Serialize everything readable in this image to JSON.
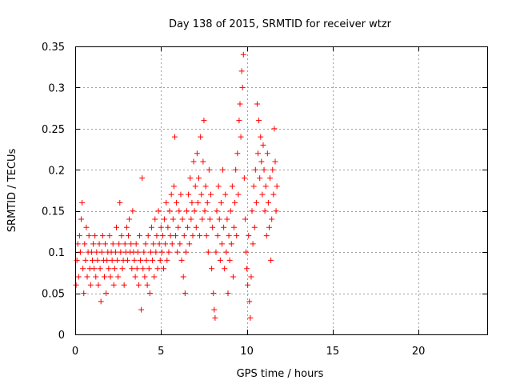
{
  "chart_data": {
    "type": "scatter",
    "title": "Day 138 of 2015, SRMTID for receiver wtzr",
    "xlabel": "GPS time / hours",
    "ylabel": "SRMTID / TECUs",
    "xlim": [
      0,
      24
    ],
    "ylim": [
      0,
      0.35
    ],
    "xticks": [
      0,
      5,
      10,
      15,
      20
    ],
    "xtick_labels": [
      "0",
      "5",
      "10",
      "15",
      "20"
    ],
    "yticks": [
      0,
      0.05,
      0.1,
      0.15,
      0.2,
      0.25,
      0.3,
      0.35
    ],
    "ytick_labels": [
      "0",
      "0.05",
      "0.1",
      "0.15",
      "0.2",
      "0.25",
      "0.3",
      "0.35"
    ],
    "grid": true,
    "marker": "plus",
    "color": "#ff0000",
    "series": [
      {
        "name": "SRMTID",
        "points": [
          [
            0.05,
            0.06
          ],
          [
            0.1,
            0.09
          ],
          [
            0.15,
            0.11
          ],
          [
            0.2,
            0.07
          ],
          [
            0.25,
            0.12
          ],
          [
            0.3,
            0.1
          ],
          [
            0.35,
            0.14
          ],
          [
            0.4,
            0.16
          ],
          [
            0.45,
            0.08
          ],
          [
            0.5,
            0.05
          ],
          [
            0.55,
            0.11
          ],
          [
            0.6,
            0.09
          ],
          [
            0.65,
            0.13
          ],
          [
            0.7,
            0.07
          ],
          [
            0.75,
            0.1
          ],
          [
            0.8,
            0.12
          ],
          [
            0.85,
            0.08
          ],
          [
            0.9,
            0.06
          ],
          [
            0.95,
            0.1
          ],
          [
            1.0,
            0.09
          ],
          [
            1.05,
            0.11
          ],
          [
            1.1,
            0.08
          ],
          [
            1.15,
            0.12
          ],
          [
            1.2,
            0.07
          ],
          [
            1.25,
            0.1
          ],
          [
            1.3,
            0.09
          ],
          [
            1.35,
            0.06
          ],
          [
            1.4,
            0.11
          ],
          [
            1.45,
            0.08
          ],
          [
            1.5,
            0.04
          ],
          [
            1.55,
            0.1
          ],
          [
            1.6,
            0.12
          ],
          [
            1.65,
            0.09
          ],
          [
            1.7,
            0.07
          ],
          [
            1.75,
            0.11
          ],
          [
            1.8,
            0.05
          ],
          [
            1.85,
            0.09
          ],
          [
            1.9,
            0.1
          ],
          [
            1.95,
            0.08
          ],
          [
            2.0,
            0.12
          ],
          [
            2.05,
            0.07
          ],
          [
            2.1,
            0.1
          ],
          [
            2.15,
            0.09
          ],
          [
            2.2,
            0.11
          ],
          [
            2.25,
            0.06
          ],
          [
            2.3,
            0.08
          ],
          [
            2.35,
            0.1
          ],
          [
            2.4,
            0.13
          ],
          [
            2.45,
            0.09
          ],
          [
            2.5,
            0.07
          ],
          [
            2.55,
            0.11
          ],
          [
            2.6,
            0.16
          ],
          [
            2.65,
            0.1
          ],
          [
            2.7,
            0.12
          ],
          [
            2.75,
            0.08
          ],
          [
            2.8,
            0.09
          ],
          [
            2.85,
            0.06
          ],
          [
            2.9,
            0.11
          ],
          [
            2.95,
            0.1
          ],
          [
            3.0,
            0.13
          ],
          [
            3.05,
            0.09
          ],
          [
            3.1,
            0.12
          ],
          [
            3.15,
            0.14
          ],
          [
            3.2,
            0.1
          ],
          [
            3.25,
            0.11
          ],
          [
            3.3,
            0.08
          ],
          [
            3.35,
            0.15
          ],
          [
            3.4,
            0.1
          ],
          [
            3.45,
            0.09
          ],
          [
            3.5,
            0.07
          ],
          [
            3.55,
            0.11
          ],
          [
            3.6,
            0.08
          ],
          [
            3.65,
            0.1
          ],
          [
            3.7,
            0.06
          ],
          [
            3.75,
            0.12
          ],
          [
            3.8,
            0.09
          ],
          [
            3.85,
            0.03
          ],
          [
            3.9,
            0.19
          ],
          [
            3.95,
            0.08
          ],
          [
            4.0,
            0.1
          ],
          [
            4.05,
            0.07
          ],
          [
            4.1,
            0.11
          ],
          [
            4.15,
            0.09
          ],
          [
            4.2,
            0.06
          ],
          [
            4.25,
            0.12
          ],
          [
            4.3,
            0.08
          ],
          [
            4.35,
            0.05
          ],
          [
            4.4,
            0.1
          ],
          [
            4.45,
            0.13
          ],
          [
            4.5,
            0.09
          ],
          [
            4.55,
            0.11
          ],
          [
            4.6,
            0.07
          ],
          [
            4.65,
            0.14
          ],
          [
            4.7,
            0.1
          ],
          [
            4.75,
            0.12
          ],
          [
            4.8,
            0.08
          ],
          [
            4.85,
            0.15
          ],
          [
            4.9,
            0.11
          ],
          [
            4.95,
            0.09
          ],
          [
            5.0,
            0.13
          ],
          [
            5.05,
            0.1
          ],
          [
            5.1,
            0.12
          ],
          [
            5.15,
            0.08
          ],
          [
            5.2,
            0.14
          ],
          [
            5.25,
            0.11
          ],
          [
            5.3,
            0.16
          ],
          [
            5.35,
            0.09
          ],
          [
            5.4,
            0.13
          ],
          [
            5.45,
            0.1
          ],
          [
            5.5,
            0.15
          ],
          [
            5.55,
            0.12
          ],
          [
            5.6,
            0.17
          ],
          [
            5.65,
            0.11
          ],
          [
            5.7,
            0.14
          ],
          [
            5.75,
            0.18
          ],
          [
            5.8,
            0.24
          ],
          [
            5.85,
            0.12
          ],
          [
            5.9,
            0.16
          ],
          [
            5.95,
            0.1
          ],
          [
            6.0,
            0.13
          ],
          [
            6.05,
            0.15
          ],
          [
            6.1,
            0.11
          ],
          [
            6.15,
            0.17
          ],
          [
            6.2,
            0.09
          ],
          [
            6.25,
            0.14
          ],
          [
            6.3,
            0.07
          ],
          [
            6.35,
            0.12
          ],
          [
            6.4,
            0.05
          ],
          [
            6.45,
            0.1
          ],
          [
            6.5,
            0.15
          ],
          [
            6.55,
            0.13
          ],
          [
            6.6,
            0.17
          ],
          [
            6.65,
            0.11
          ],
          [
            6.7,
            0.19
          ],
          [
            6.75,
            0.14
          ],
          [
            6.8,
            0.16
          ],
          [
            6.85,
            0.12
          ],
          [
            6.9,
            0.21
          ],
          [
            6.95,
            0.15
          ],
          [
            7.0,
            0.18
          ],
          [
            7.05,
            0.13
          ],
          [
            7.1,
            0.22
          ],
          [
            7.15,
            0.16
          ],
          [
            7.2,
            0.19
          ],
          [
            7.25,
            0.12
          ],
          [
            7.3,
            0.24
          ],
          [
            7.35,
            0.17
          ],
          [
            7.4,
            0.14
          ],
          [
            7.45,
            0.21
          ],
          [
            7.5,
            0.26
          ],
          [
            7.55,
            0.15
          ],
          [
            7.6,
            0.18
          ],
          [
            7.65,
            0.12
          ],
          [
            7.7,
            0.16
          ],
          [
            7.75,
            0.1
          ],
          [
            7.8,
            0.2
          ],
          [
            7.85,
            0.14
          ],
          [
            7.9,
            0.17
          ],
          [
            7.95,
            0.08
          ],
          [
            8.0,
            0.13
          ],
          [
            8.05,
            0.05
          ],
          [
            8.1,
            0.03
          ],
          [
            8.15,
            0.02
          ],
          [
            8.2,
            0.1
          ],
          [
            8.25,
            0.15
          ],
          [
            8.3,
            0.12
          ],
          [
            8.35,
            0.18
          ],
          [
            8.4,
            0.14
          ],
          [
            8.45,
            0.09
          ],
          [
            8.5,
            0.16
          ],
          [
            8.55,
            0.11
          ],
          [
            8.6,
            0.2
          ],
          [
            8.65,
            0.13
          ],
          [
            8.7,
            0.08
          ],
          [
            8.75,
            0.17
          ],
          [
            8.8,
            0.1
          ],
          [
            8.85,
            0.14
          ],
          [
            8.9,
            0.05
          ],
          [
            8.95,
            0.12
          ],
          [
            9.0,
            0.09
          ],
          [
            9.05,
            0.15
          ],
          [
            9.1,
            0.11
          ],
          [
            9.15,
            0.18
          ],
          [
            9.2,
            0.07
          ],
          [
            9.25,
            0.13
          ],
          [
            9.3,
            0.16
          ],
          [
            9.35,
            0.2
          ],
          [
            9.4,
            0.12
          ],
          [
            9.45,
            0.22
          ],
          [
            9.5,
            0.17
          ],
          [
            9.55,
            0.26
          ],
          [
            9.6,
            0.28
          ],
          [
            9.65,
            0.24
          ],
          [
            9.7,
            0.32
          ],
          [
            9.75,
            0.3
          ],
          [
            9.8,
            0.34
          ],
          [
            9.85,
            0.19
          ],
          [
            9.9,
            0.14
          ],
          [
            9.95,
            0.1
          ],
          [
            10.0,
            0.08
          ],
          [
            10.05,
            0.06
          ],
          [
            10.1,
            0.12
          ],
          [
            10.15,
            0.04
          ],
          [
            10.2,
            0.02
          ],
          [
            10.25,
            0.07
          ],
          [
            10.3,
            0.15
          ],
          [
            10.35,
            0.11
          ],
          [
            10.4,
            0.18
          ],
          [
            10.45,
            0.13
          ],
          [
            10.5,
            0.2
          ],
          [
            10.55,
            0.16
          ],
          [
            10.6,
            0.28
          ],
          [
            10.65,
            0.22
          ],
          [
            10.7,
            0.26
          ],
          [
            10.75,
            0.19
          ],
          [
            10.8,
            0.24
          ],
          [
            10.85,
            0.21
          ],
          [
            10.9,
            0.17
          ],
          [
            10.95,
            0.23
          ],
          [
            11.0,
            0.2
          ],
          [
            11.05,
            0.15
          ],
          [
            11.1,
            0.18
          ],
          [
            11.15,
            0.12
          ],
          [
            11.2,
            0.22
          ],
          [
            11.25,
            0.16
          ],
          [
            11.3,
            0.13
          ],
          [
            11.35,
            0.19
          ],
          [
            11.4,
            0.09
          ],
          [
            11.45,
            0.14
          ],
          [
            11.5,
            0.2
          ],
          [
            11.55,
            0.17
          ],
          [
            11.6,
            0.25
          ],
          [
            11.65,
            0.21
          ],
          [
            11.7,
            0.15
          ],
          [
            11.75,
            0.18
          ]
        ]
      }
    ]
  }
}
